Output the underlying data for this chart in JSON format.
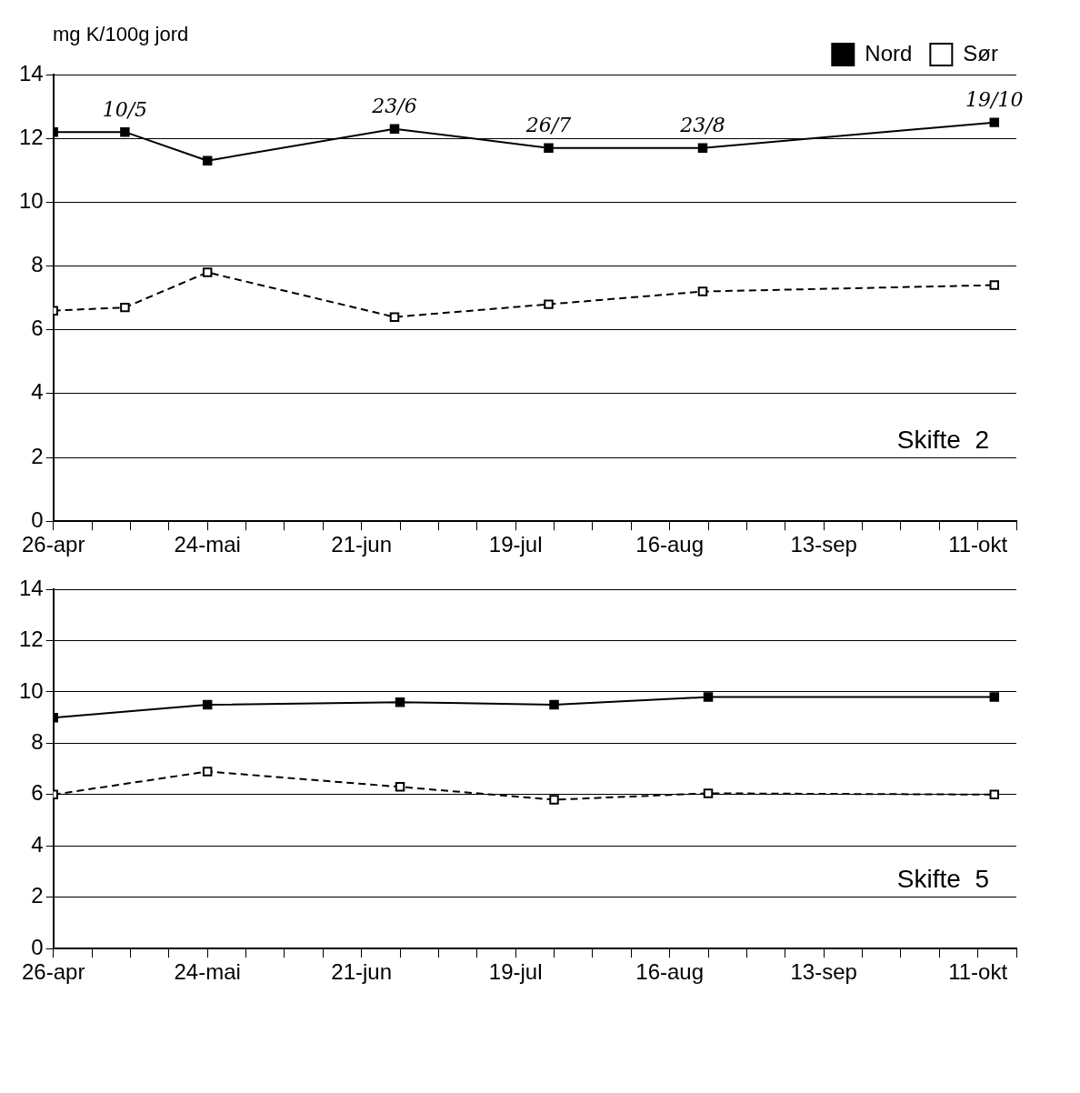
{
  "chart_data": [
    {
      "type": "line",
      "ylabel": "mg K/100g jord",
      "legend": "top right",
      "grid": "y",
      "marker": "square",
      "xlim": [
        "--04-26",
        "--10-18"
      ],
      "ylim": [
        0,
        14
      ],
      "yticks": [
        0,
        2,
        4,
        6,
        8,
        10,
        12,
        14
      ],
      "xticks": [
        {
          "value": "--04-26",
          "label": "26-apr"
        },
        {
          "value": "--05-03",
          "label": null
        },
        {
          "value": "--05-10",
          "label": null
        },
        {
          "value": "--05-17",
          "label": null
        },
        {
          "value": "--05-24",
          "label": "24-mai"
        },
        {
          "value": "--05-31",
          "label": null
        },
        {
          "value": "--06-07",
          "label": null
        },
        {
          "value": "--06-14",
          "label": null
        },
        {
          "value": "--06-21",
          "label": "21-jun"
        },
        {
          "value": "--06-28",
          "label": null
        },
        {
          "value": "--07-05",
          "label": null
        },
        {
          "value": "--07-12",
          "label": null
        },
        {
          "value": "--07-19",
          "label": "19-jul"
        },
        {
          "value": "--07-26",
          "label": null
        },
        {
          "value": "--08-02",
          "label": null
        },
        {
          "value": "--08-09",
          "label": null
        },
        {
          "value": "--08-16",
          "label": "16-aug"
        },
        {
          "value": "--08-23",
          "label": null
        },
        {
          "value": "--08-30",
          "label": null
        },
        {
          "value": "--09-06",
          "label": null
        },
        {
          "value": "--09-13",
          "label": "13-sep"
        },
        {
          "value": "--09-20",
          "label": null
        },
        {
          "value": "--09-27",
          "label": null
        },
        {
          "value": "--10-04",
          "label": null
        },
        {
          "value": "--10-11",
          "label": "11-okt"
        },
        {
          "value": "--10-18",
          "label": null
        }
      ],
      "x": [
        "--04-26",
        "--05-09",
        "--05-24",
        "--06-27",
        "--07-25",
        "--08-22",
        "--10-14"
      ],
      "series": [
        {
          "name": "Nord",
          "color": "#000000",
          "line_style": "solid",
          "values": [
            12.2,
            12.2,
            11.3,
            12.3,
            11.7,
            11.7,
            12.5
          ]
        },
        {
          "name": "Sør",
          "color": "#000000",
          "line_style": "dashed",
          "values": [
            6.6,
            6.7,
            7.8,
            6.4,
            6.8,
            7.2,
            7.4
          ]
        }
      ],
      "annotations": [
        "Skifte  2",
        {
          "text": "10/5",
          "x": "--05-09",
          "y": 12.2
        },
        {
          "text": "23/6",
          "x": "--06-27",
          "y": 12.3
        },
        {
          "text": "26/7",
          "x": "--07-25",
          "y": 11.7
        },
        {
          "text": "23/8",
          "x": "--08-22",
          "y": 11.7
        },
        {
          "text": "19/10",
          "x": "--10-14",
          "y": 12.5
        }
      ]
    },
    {
      "type": "line",
      "grid": "y",
      "marker": "square",
      "xlim": [
        "--04-26",
        "--10-18"
      ],
      "ylim": [
        0,
        14
      ],
      "yticks": [
        0,
        2,
        4,
        6,
        8,
        10,
        12,
        14
      ],
      "xticks": [
        {
          "value": "--04-26",
          "label": "26-apr"
        },
        {
          "value": "--05-03",
          "label": null
        },
        {
          "value": "--05-10",
          "label": null
        },
        {
          "value": "--05-17",
          "label": null
        },
        {
          "value": "--05-24",
          "label": "24-mai"
        },
        {
          "value": "--05-31",
          "label": null
        },
        {
          "value": "--06-07",
          "label": null
        },
        {
          "value": "--06-14",
          "label": null
        },
        {
          "value": "--06-21",
          "label": "21-jun"
        },
        {
          "value": "--06-28",
          "label": null
        },
        {
          "value": "--07-05",
          "label": null
        },
        {
          "value": "--07-12",
          "label": null
        },
        {
          "value": "--07-19",
          "label": "19-jul"
        },
        {
          "value": "--07-26",
          "label": null
        },
        {
          "value": "--08-02",
          "label": null
        },
        {
          "value": "--08-09",
          "label": null
        },
        {
          "value": "--08-16",
          "label": "16-aug"
        },
        {
          "value": "--08-23",
          "label": null
        },
        {
          "value": "--08-30",
          "label": null
        },
        {
          "value": "--09-06",
          "label": null
        },
        {
          "value": "--09-13",
          "label": "13-sep"
        },
        {
          "value": "--09-20",
          "label": null
        },
        {
          "value": "--09-27",
          "label": null
        },
        {
          "value": "--10-04",
          "label": null
        },
        {
          "value": "--10-11",
          "label": "11-okt"
        },
        {
          "value": "--10-18",
          "label": null
        }
      ],
      "x": [
        "--04-26",
        "--05-24",
        "--06-28",
        "--07-26",
        "--08-23",
        "--10-14"
      ],
      "series": [
        {
          "color": "#000000",
          "line_style": "solid",
          "values": [
            9.0,
            9.5,
            9.6,
            9.5,
            9.8,
            9.8
          ]
        },
        {
          "color": "#000000",
          "line_style": "dashed",
          "values": [
            6.0,
            6.9,
            6.3,
            5.8,
            6.05,
            6.0
          ]
        }
      ],
      "annotations": [
        "Skifte  5"
      ]
    }
  ]
}
